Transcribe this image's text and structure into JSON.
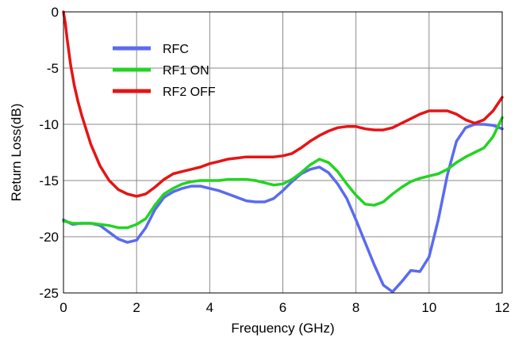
{
  "chart_data": {
    "type": "line",
    "title": "",
    "xlabel": "Frequency (GHz)",
    "ylabel": "Return Loss(dB)",
    "xlim": [
      0,
      12
    ],
    "ylim": [
      -25,
      0
    ],
    "xticks": [
      0,
      2,
      4,
      6,
      8,
      10,
      12
    ],
    "yticks": [
      0,
      -5,
      -10,
      -15,
      -20,
      -25
    ],
    "grid": true,
    "legend_position": "top-left",
    "series": [
      {
        "name": "RFC",
        "color": "#5a6bf0",
        "x": [
          0,
          0.25,
          0.5,
          0.75,
          1.0,
          1.25,
          1.5,
          1.75,
          2.0,
          2.25,
          2.5,
          2.75,
          3.0,
          3.25,
          3.5,
          3.75,
          4.0,
          4.25,
          4.5,
          4.75,
          5.0,
          5.25,
          5.5,
          5.75,
          6.0,
          6.25,
          6.5,
          6.75,
          7.0,
          7.25,
          7.5,
          7.75,
          8.0,
          8.25,
          8.5,
          8.75,
          9.0,
          9.25,
          9.5,
          9.75,
          10.0,
          10.25,
          10.5,
          10.75,
          11.0,
          11.25,
          11.5,
          11.75,
          12.0
        ],
        "values": [
          -18.5,
          -18.9,
          -18.8,
          -18.8,
          -19.0,
          -19.6,
          -20.2,
          -20.5,
          -20.3,
          -19.2,
          -17.6,
          -16.5,
          -16.0,
          -15.7,
          -15.5,
          -15.5,
          -15.7,
          -15.9,
          -16.2,
          -16.5,
          -16.8,
          -16.9,
          -16.9,
          -16.6,
          -15.9,
          -15.1,
          -14.4,
          -14.0,
          -13.8,
          -14.3,
          -15.3,
          -16.6,
          -18.5,
          -20.5,
          -22.5,
          -24.3,
          -24.9,
          -24.0,
          -23.0,
          -23.1,
          -21.8,
          -18.5,
          -14.5,
          -11.5,
          -10.3,
          -10.0,
          -10.0,
          -10.1,
          -10.4
        ]
      },
      {
        "name": "RF1 ON",
        "color": "#22d422",
        "x": [
          0,
          0.25,
          0.5,
          0.75,
          1.0,
          1.25,
          1.5,
          1.75,
          2.0,
          2.25,
          2.5,
          2.75,
          3.0,
          3.25,
          3.5,
          3.75,
          4.0,
          4.25,
          4.5,
          4.75,
          5.0,
          5.25,
          5.5,
          5.75,
          6.0,
          6.25,
          6.5,
          6.75,
          7.0,
          7.25,
          7.5,
          7.75,
          8.0,
          8.25,
          8.5,
          8.75,
          9.0,
          9.25,
          9.5,
          9.75,
          10.0,
          10.25,
          10.5,
          10.75,
          11.0,
          11.25,
          11.5,
          11.75,
          12.0
        ],
        "values": [
          -18.6,
          -18.8,
          -18.8,
          -18.8,
          -18.9,
          -19.0,
          -19.2,
          -19.2,
          -18.9,
          -18.4,
          -17.2,
          -16.2,
          -15.7,
          -15.3,
          -15.1,
          -15.0,
          -15.0,
          -15.0,
          -14.9,
          -14.9,
          -14.9,
          -15.0,
          -15.2,
          -15.4,
          -15.3,
          -14.9,
          -14.3,
          -13.6,
          -13.1,
          -13.4,
          -14.2,
          -15.3,
          -16.3,
          -17.1,
          -17.2,
          -16.9,
          -16.2,
          -15.6,
          -15.1,
          -14.8,
          -14.6,
          -14.4,
          -14.0,
          -13.4,
          -12.9,
          -12.5,
          -12.1,
          -11.1,
          -9.4
        ]
      },
      {
        "name": "RF2 OFF",
        "color": "#e61414",
        "x": [
          0,
          0.05,
          0.1,
          0.2,
          0.3,
          0.4,
          0.5,
          0.75,
          1.0,
          1.25,
          1.5,
          1.75,
          2.0,
          2.25,
          2.5,
          2.75,
          3.0,
          3.25,
          3.5,
          3.75,
          4.0,
          4.25,
          4.5,
          4.75,
          5.0,
          5.25,
          5.5,
          5.75,
          6.0,
          6.25,
          6.5,
          6.75,
          7.0,
          7.25,
          7.5,
          7.75,
          8.0,
          8.25,
          8.5,
          8.75,
          9.0,
          9.25,
          9.5,
          9.75,
          10.0,
          10.25,
          10.5,
          10.75,
          11.0,
          11.25,
          11.5,
          11.75,
          12.0
        ],
        "values": [
          0,
          -1.0,
          -2.4,
          -4.8,
          -6.6,
          -8.0,
          -9.2,
          -11.8,
          -13.7,
          -15.0,
          -15.8,
          -16.2,
          -16.4,
          -16.2,
          -15.6,
          -14.9,
          -14.4,
          -14.2,
          -14.0,
          -13.8,
          -13.5,
          -13.3,
          -13.1,
          -13.0,
          -12.9,
          -12.9,
          -12.9,
          -12.9,
          -12.8,
          -12.6,
          -12.1,
          -11.5,
          -11.0,
          -10.6,
          -10.3,
          -10.2,
          -10.2,
          -10.4,
          -10.5,
          -10.5,
          -10.3,
          -9.9,
          -9.5,
          -9.1,
          -8.8,
          -8.8,
          -8.8,
          -9.1,
          -9.6,
          -9.9,
          -9.6,
          -8.8,
          -7.6
        ]
      }
    ]
  }
}
